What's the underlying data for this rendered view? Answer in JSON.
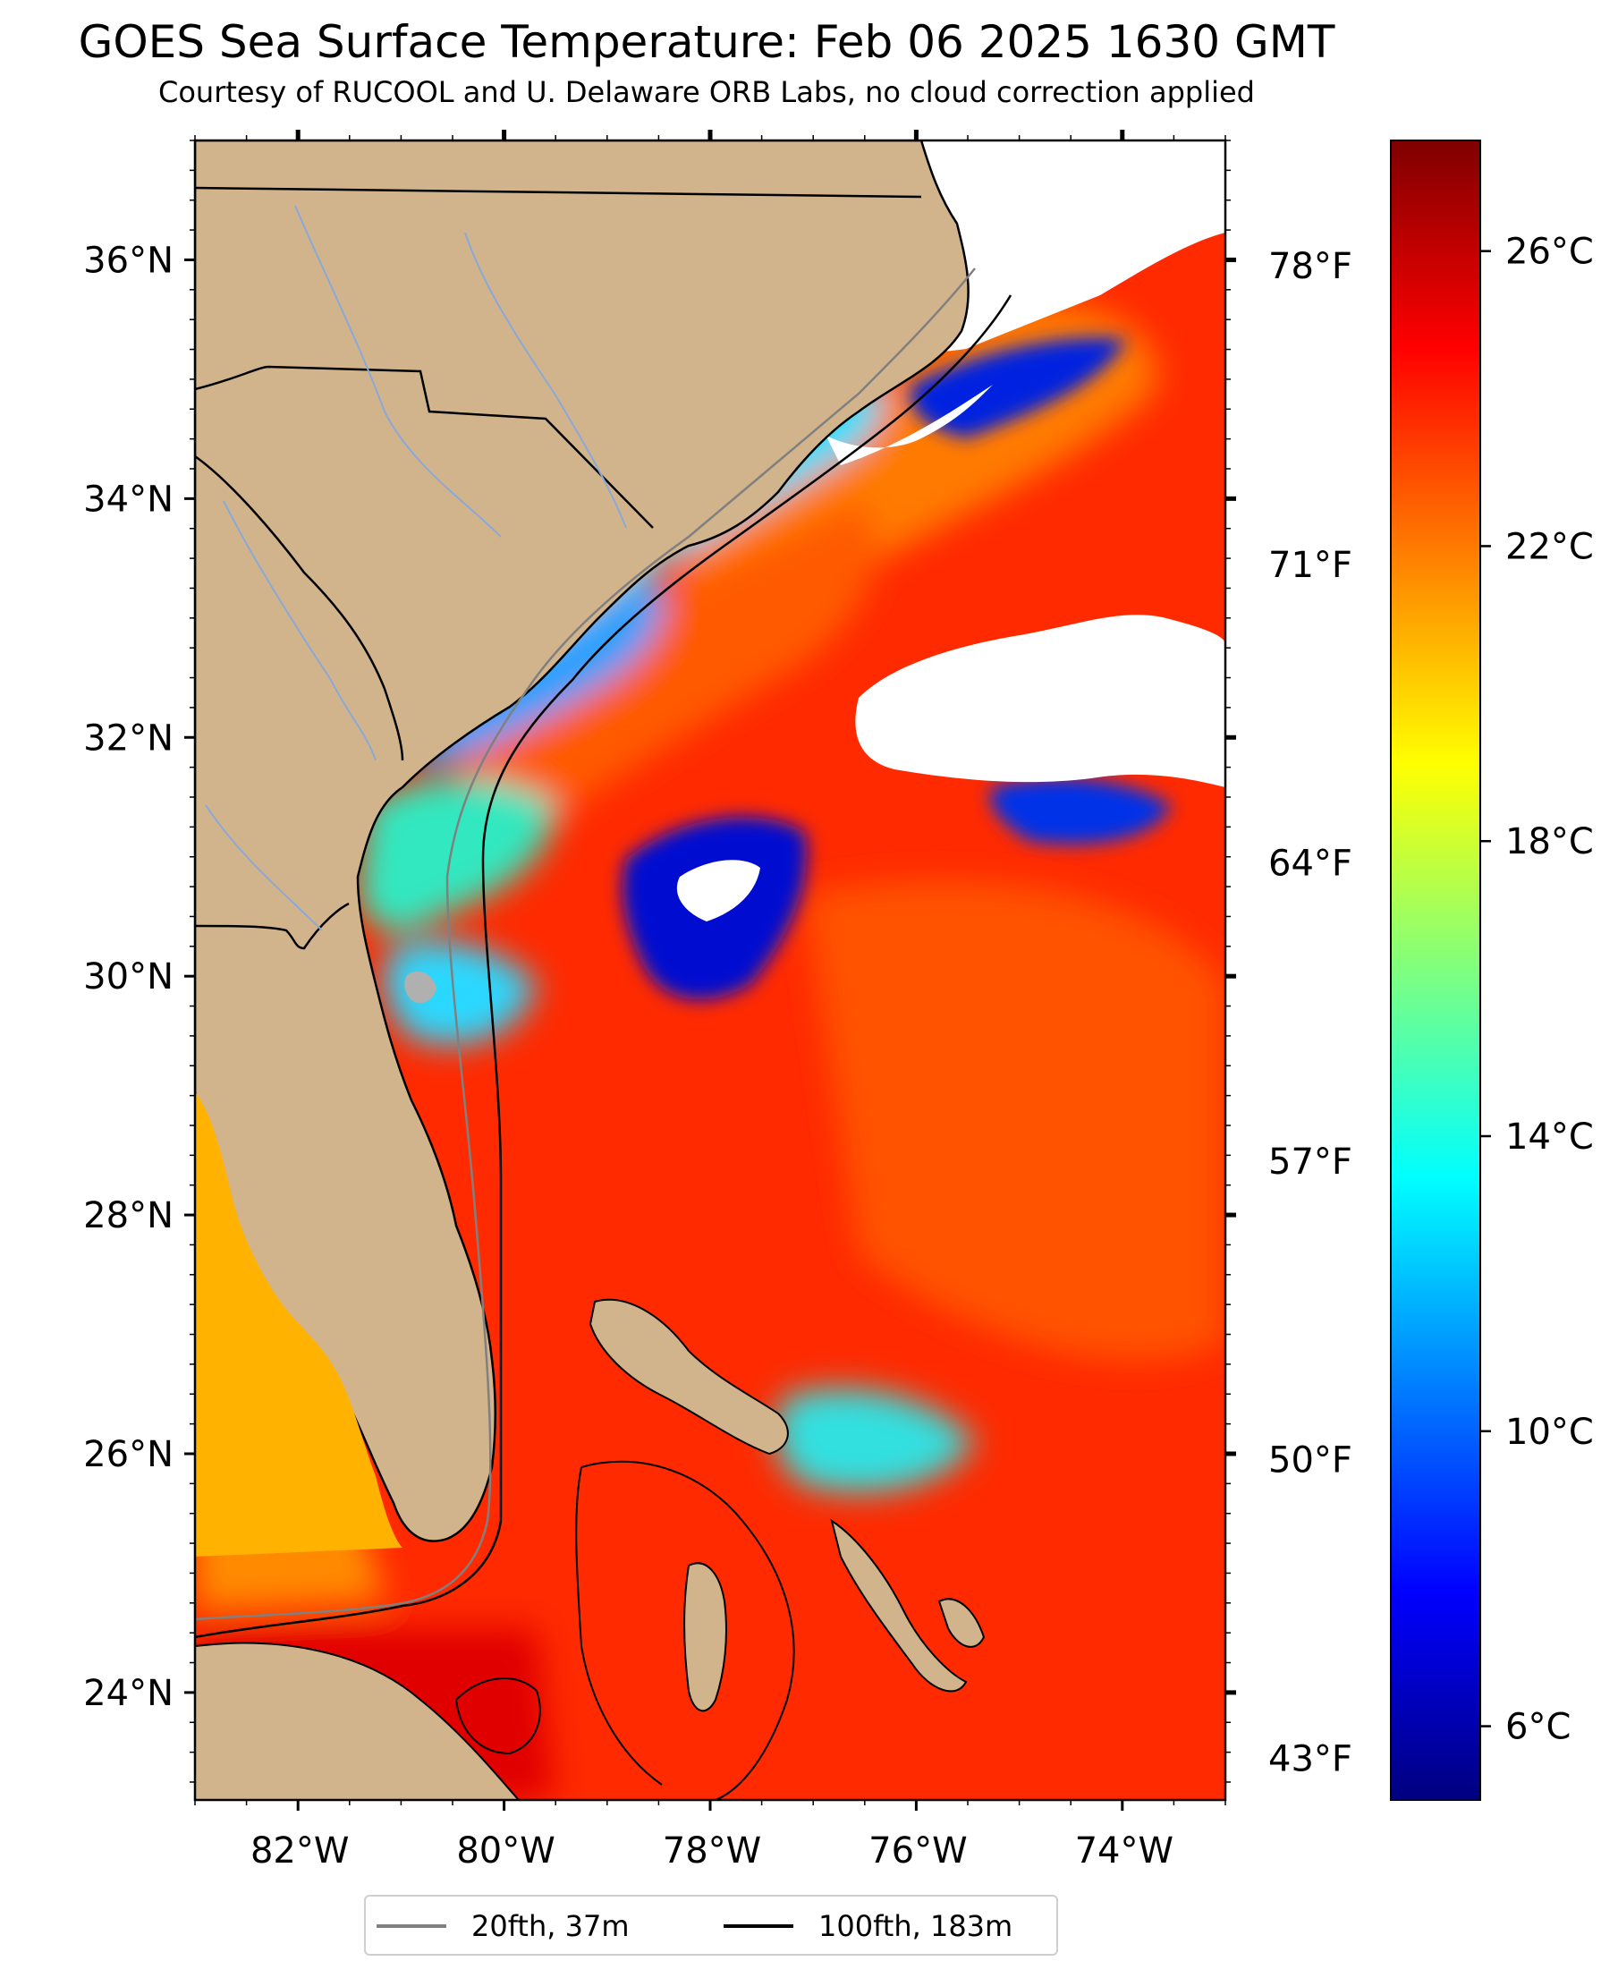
{
  "title": "GOES Sea Surface Temperature: Feb 06 2025 1630 GMT",
  "subtitle": "Courtesy of RUCOOL and U. Delaware ORB Labs, no cloud correction applied",
  "map": {
    "lon_range": [
      -83.0,
      -73.0
    ],
    "lat_range": [
      23.1,
      37.0
    ],
    "lat_ticks": [
      {
        "value": 24,
        "label": "24°N"
      },
      {
        "value": 26,
        "label": "26°N"
      },
      {
        "value": 28,
        "label": "28°N"
      },
      {
        "value": 30,
        "label": "30°N"
      },
      {
        "value": 32,
        "label": "32°N"
      },
      {
        "value": 34,
        "label": "34°N"
      },
      {
        "value": 36,
        "label": "36°N"
      }
    ],
    "lon_ticks": [
      {
        "value": -82,
        "label": "82°W"
      },
      {
        "value": -80,
        "label": "80°W"
      },
      {
        "value": -78,
        "label": "78°W"
      },
      {
        "value": -76,
        "label": "76°W"
      },
      {
        "value": -74,
        "label": "74°W"
      }
    ],
    "fahrenheit_ticks": [
      {
        "lat": 35.95,
        "label": "78°F"
      },
      {
        "lat": 33.45,
        "label": "71°F"
      },
      {
        "lat": 30.95,
        "label": "64°F"
      },
      {
        "lat": 28.45,
        "label": "57°F"
      },
      {
        "lat": 25.95,
        "label": "50°F"
      },
      {
        "lat": 23.45,
        "label": "43°F"
      }
    ],
    "colors": {
      "land": "#d2b48c",
      "cloud": "#ffffff",
      "contour_20fth": "#808080",
      "contour_100fth": "#000000",
      "rivers": "#87a9d6"
    }
  },
  "colorbar": {
    "vmin": 5.0,
    "vmax": 27.5,
    "ticks": [
      {
        "value": 6,
        "label": "6°C"
      },
      {
        "value": 10,
        "label": "10°C"
      },
      {
        "value": 14,
        "label": "14°C"
      },
      {
        "value": 18,
        "label": "18°C"
      },
      {
        "value": 22,
        "label": "22°C"
      },
      {
        "value": 26,
        "label": "26°C"
      }
    ],
    "colormap": [
      "#00007f",
      "#0000ff",
      "#007fff",
      "#00ffff",
      "#7fff7f",
      "#ffff00",
      "#ff7f00",
      "#ff0000",
      "#7f0000"
    ]
  },
  "legend": {
    "items": [
      {
        "label": "20fth, 37m",
        "color": "#808080"
      },
      {
        "label": "100fth, 183m",
        "color": "#000000"
      }
    ]
  }
}
